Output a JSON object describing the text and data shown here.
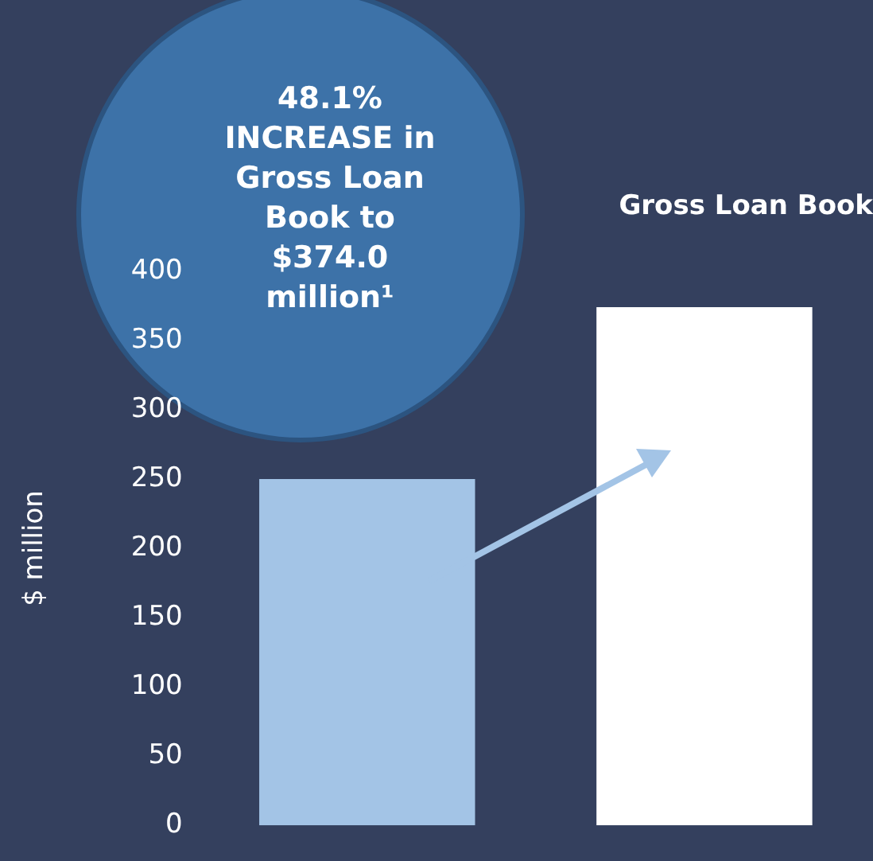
{
  "chart_data": {
    "type": "bar",
    "title": "Gross Loan Book",
    "ylabel": "$ million",
    "categories": [
      null,
      null
    ],
    "values": [
      250,
      374
    ],
    "colors": [
      "#a3c4e6",
      "#ffffff"
    ],
    "ylim": [
      0,
      400
    ],
    "yticks": [
      0,
      50,
      100,
      150,
      200,
      250,
      300,
      350,
      400
    ],
    "grid": false,
    "legend": false,
    "annotations": [
      "48.1% INCREASE in Gross Loan Book to $374.0 million¹"
    ]
  }
}
